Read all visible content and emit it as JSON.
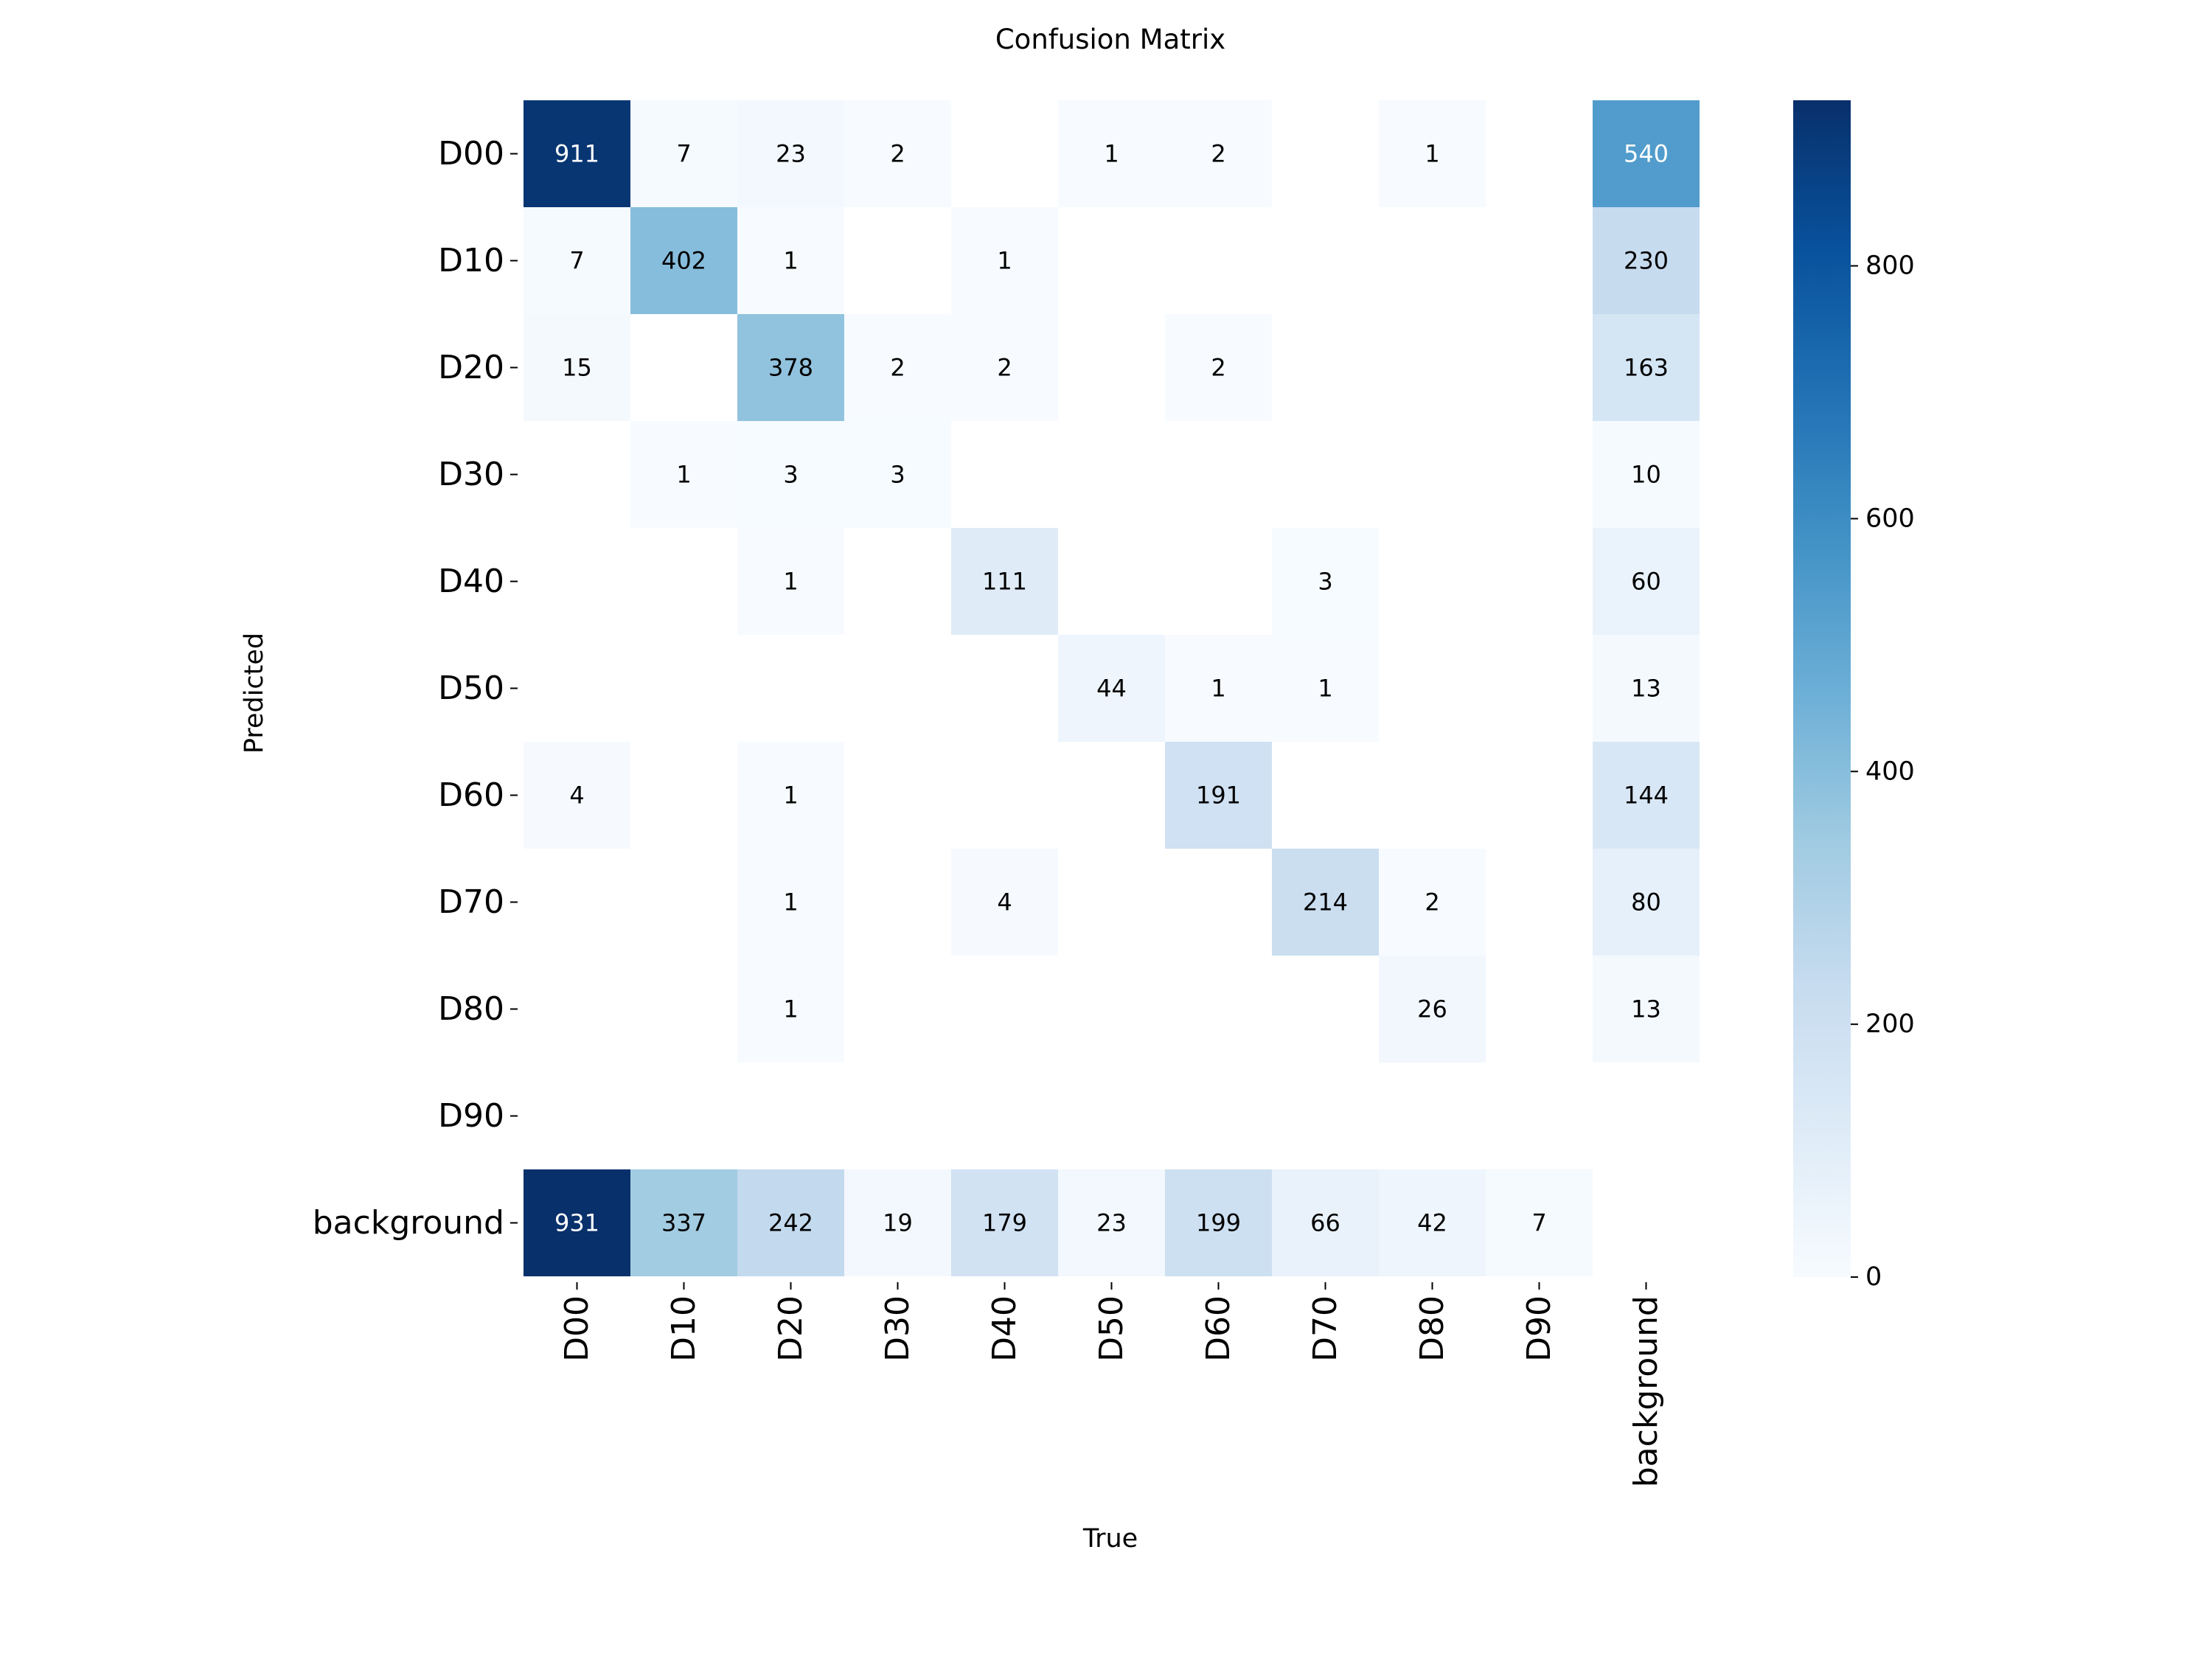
{
  "chart_data": {
    "type": "heatmap",
    "title": "Confusion Matrix",
    "xlabel": "True",
    "ylabel": "Predicted",
    "row_labels": [
      "D00",
      "D10",
      "D20",
      "D30",
      "D40",
      "D50",
      "D60",
      "D70",
      "D80",
      "D90",
      "background"
    ],
    "col_labels": [
      "D00",
      "D10",
      "D20",
      "D30",
      "D40",
      "D50",
      "D60",
      "D70",
      "D80",
      "D90",
      "background"
    ],
    "values": [
      [
        911,
        7,
        23,
        2,
        0,
        1,
        2,
        0,
        1,
        0,
        540
      ],
      [
        7,
        402,
        1,
        0,
        1,
        0,
        0,
        0,
        0,
        0,
        230
      ],
      [
        15,
        0,
        378,
        2,
        2,
        0,
        2,
        0,
        0,
        0,
        163
      ],
      [
        0,
        1,
        3,
        3,
        0,
        0,
        0,
        0,
        0,
        0,
        10
      ],
      [
        0,
        0,
        1,
        0,
        111,
        0,
        0,
        3,
        0,
        0,
        60
      ],
      [
        0,
        0,
        0,
        0,
        0,
        44,
        1,
        1,
        0,
        0,
        13
      ],
      [
        4,
        0,
        1,
        0,
        0,
        0,
        191,
        0,
        0,
        0,
        144
      ],
      [
        0,
        0,
        1,
        0,
        4,
        0,
        0,
        214,
        2,
        0,
        80
      ],
      [
        0,
        0,
        1,
        0,
        0,
        0,
        0,
        0,
        26,
        0,
        13
      ],
      [
        0,
        0,
        0,
        0,
        0,
        0,
        0,
        0,
        0,
        0,
        0
      ],
      [
        931,
        337,
        242,
        19,
        179,
        23,
        199,
        66,
        42,
        7,
        0
      ]
    ],
    "zero_cells_shown": false,
    "colormap": "Blues",
    "vmin": 0,
    "vmax": 931,
    "colorbar_ticks": [
      0,
      200,
      400,
      600,
      800
    ],
    "colors": {
      "low": "#f7fbff",
      "high": "#08306b",
      "label_dark": "#000000",
      "label_light": "#ffffff"
    }
  }
}
